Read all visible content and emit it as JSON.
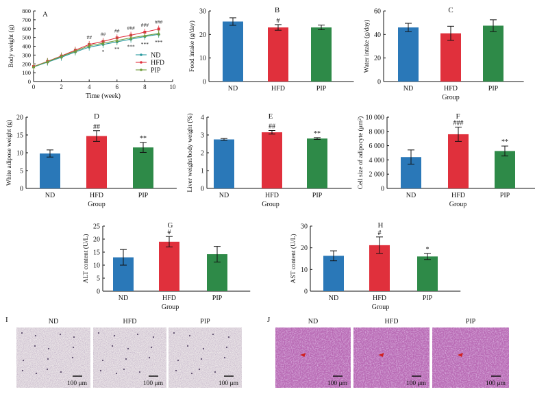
{
  "colors": {
    "nd": "#2a78b8",
    "hfd": "#e0303c",
    "pip": "#2e8a48",
    "line_nd": "#2a9aa0",
    "line_hfd": "#e0303c",
    "line_pip": "#6e9c3c",
    "micro_i": "#e9e3e6",
    "micro_j": "#b86ab4"
  },
  "chart_data": [
    {
      "id": "A",
      "type": "line",
      "panel_label": "A",
      "xlabel": "Time (week)",
      "ylabel": "Body weight (g)",
      "xlim": [
        0,
        10
      ],
      "ylim": [
        0,
        800
      ],
      "x_ticks": [
        "0",
        "2",
        "4",
        "6",
        "8",
        "10"
      ],
      "y_ticks": [
        "0",
        "100",
        "200",
        "300",
        "400",
        "500",
        "600",
        "700",
        "800"
      ],
      "x": [
        0,
        1,
        2,
        3,
        4,
        5,
        6,
        7,
        8,
        9
      ],
      "series": [
        {
          "name": "ND",
          "color_key": "line_nd",
          "values": [
            165,
            220,
            275,
            335,
            390,
            420,
            450,
            480,
            510,
            535
          ]
        },
        {
          "name": "HFD",
          "color_key": "line_hfd",
          "values": [
            170,
            228,
            290,
            355,
            420,
            455,
            495,
            525,
            560,
            595
          ]
        },
        {
          "name": "PIP",
          "color_key": "line_pip",
          "values": [
            168,
            225,
            285,
            345,
            405,
            435,
            465,
            495,
            520,
            545
          ]
        }
      ],
      "annotations_hfd": [
        {
          "x": 4,
          "text": "##"
        },
        {
          "x": 5,
          "text": "##"
        },
        {
          "x": 6,
          "text": "##"
        },
        {
          "x": 7,
          "text": "###"
        },
        {
          "x": 8,
          "text": "###"
        },
        {
          "x": 9,
          "text": "###"
        }
      ],
      "annotations_pip": [
        {
          "x": 5,
          "text": "*"
        },
        {
          "x": 6,
          "text": "**"
        },
        {
          "x": 7,
          "text": "***"
        },
        {
          "x": 8,
          "text": "***"
        },
        {
          "x": 9,
          "text": "***"
        }
      ]
    },
    {
      "id": "B",
      "type": "bar",
      "panel_label": "B",
      "ylabel": "Food intake (g/day)",
      "xlabel": "",
      "categories": [
        "ND",
        "HFD",
        "PIP"
      ],
      "values": [
        25.5,
        23,
        23
      ],
      "errors": [
        1.6,
        1.2,
        1.0
      ],
      "ylim": [
        0,
        30
      ],
      "y_ticks": [
        "0",
        "10",
        "20",
        "30"
      ],
      "annotations": [
        "",
        "#",
        ""
      ]
    },
    {
      "id": "C",
      "type": "bar",
      "panel_label": "C",
      "ylabel": "Water intake (g/day)",
      "xlabel": "Group",
      "categories": [
        "ND",
        "HFD",
        "PIP"
      ],
      "values": [
        46,
        41,
        47.5
      ],
      "errors": [
        3.5,
        6.0,
        5.0
      ],
      "ylim": [
        0,
        60
      ],
      "y_ticks": [
        "0",
        "20",
        "40",
        "60"
      ],
      "annotations": [
        "",
        "",
        ""
      ]
    },
    {
      "id": "D",
      "type": "bar",
      "panel_label": "D",
      "ylabel": "White adipose weight (g)",
      "xlabel": "Group",
      "categories": [
        "ND",
        "HFD",
        "PIP"
      ],
      "values": [
        9.8,
        14.7,
        11.5
      ],
      "errors": [
        1.0,
        1.5,
        1.4
      ],
      "ylim": [
        0,
        20
      ],
      "y_ticks": [
        "0",
        "5",
        "10",
        "15",
        "20"
      ],
      "annotations": [
        "",
        "##",
        "**"
      ]
    },
    {
      "id": "E",
      "type": "bar",
      "panel_label": "E",
      "ylabel": "Liver weight/body weight (%)",
      "xlabel": "Group",
      "categories": [
        "ND",
        "HFD",
        "PIP"
      ],
      "values": [
        2.75,
        3.15,
        2.8
      ],
      "errors": [
        0.05,
        0.1,
        0.05
      ],
      "ylim": [
        0,
        4
      ],
      "y_ticks": [
        "0",
        "1",
        "2",
        "3",
        "4"
      ],
      "annotations": [
        "",
        "##",
        "**"
      ]
    },
    {
      "id": "F",
      "type": "bar",
      "panel_label": "F",
      "ylabel": "Cell size of adipocyte (μm²)",
      "xlabel": "Group",
      "categories": [
        "ND",
        "HFD",
        "PIP"
      ],
      "values": [
        4400,
        7600,
        5250
      ],
      "errors": [
        1000,
        1000,
        700
      ],
      "ylim": [
        0,
        10000
      ],
      "y_ticks": [
        "0",
        "2 000",
        "4 000",
        "6 000",
        "8 000",
        "10 000"
      ],
      "annotations": [
        "",
        "###",
        "**"
      ]
    },
    {
      "id": "G",
      "type": "bar",
      "panel_label": "G",
      "ylabel": "ALT content (U/L)",
      "xlabel": "Group",
      "categories": [
        "ND",
        "HFD",
        "PIP"
      ],
      "values": [
        13,
        19,
        14.2
      ],
      "errors": [
        3.0,
        2.0,
        3.0
      ],
      "ylim": [
        0,
        25
      ],
      "y_ticks": [
        "0",
        "5",
        "10",
        "15",
        "20",
        "25"
      ],
      "annotations": [
        "",
        "#",
        ""
      ]
    },
    {
      "id": "H",
      "type": "bar",
      "panel_label": "H",
      "ylabel": "AST content (U/L)",
      "xlabel": "Group",
      "categories": [
        "ND",
        "HFD",
        "PIP"
      ],
      "values": [
        16.3,
        21.2,
        16.0
      ],
      "errors": [
        2.3,
        3.8,
        1.4
      ],
      "ylim": [
        0,
        30
      ],
      "y_ticks": [
        "0",
        "10",
        "20",
        "30"
      ],
      "annotations": [
        "",
        "#",
        "*"
      ]
    }
  ],
  "micrographs": {
    "I": {
      "label": "I",
      "titles": [
        "ND",
        "HFD",
        "PIP"
      ],
      "scale_bar": "100 μm"
    },
    "J": {
      "label": "J",
      "titles": [
        "ND",
        "HFD",
        "PIP"
      ],
      "scale_bar": "100 μm"
    }
  }
}
